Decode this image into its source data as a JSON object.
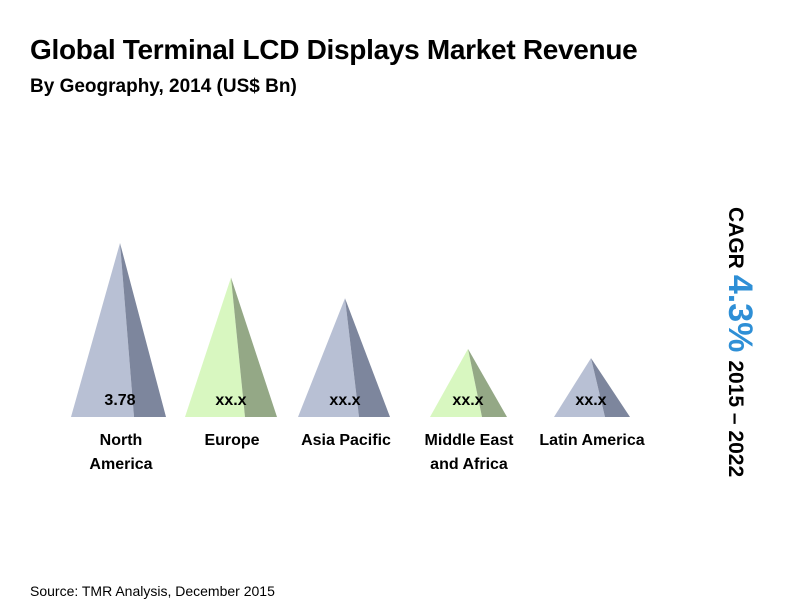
{
  "header": {
    "title": "Global Terminal LCD Displays Market Revenue",
    "subtitle": "By Geography, 2014 (US$ Bn)"
  },
  "cagr": {
    "label": "CAGR",
    "rate": "4.3%",
    "period": "2015 – 2022"
  },
  "source": "Source: TMR Analysis, December 2015",
  "colors": {
    "blue_front": "#b8c0d4",
    "blue_side": "#7d869d",
    "green_front": "#d8f7c0",
    "green_side": "#94a886",
    "cagr_rate": "#2e8fd6"
  },
  "chart_data": {
    "type": "bar",
    "style": "pyramid",
    "title": "Global Terminal LCD Displays Market Revenue",
    "subtitle": "By Geography, 2014 (US$ Bn)",
    "categories": [
      "North America",
      "Europe",
      "Asia Pacific",
      "Middle East and Africa",
      "Latin America"
    ],
    "category_lines": [
      [
        "North",
        "America"
      ],
      [
        "Europe"
      ],
      [
        "Asia Pacific"
      ],
      [
        "Middle East",
        "and Africa"
      ],
      [
        "Latin America"
      ]
    ],
    "value_labels": [
      "3.78",
      "xx.x",
      "xx.x",
      "xx.x",
      "xx.x"
    ],
    "values": [
      3.78,
      3.03,
      2.58,
      1.48,
      1.28
    ],
    "colors": [
      "blue",
      "green",
      "blue",
      "green",
      "blue"
    ],
    "grid": false,
    "legend": "none"
  }
}
